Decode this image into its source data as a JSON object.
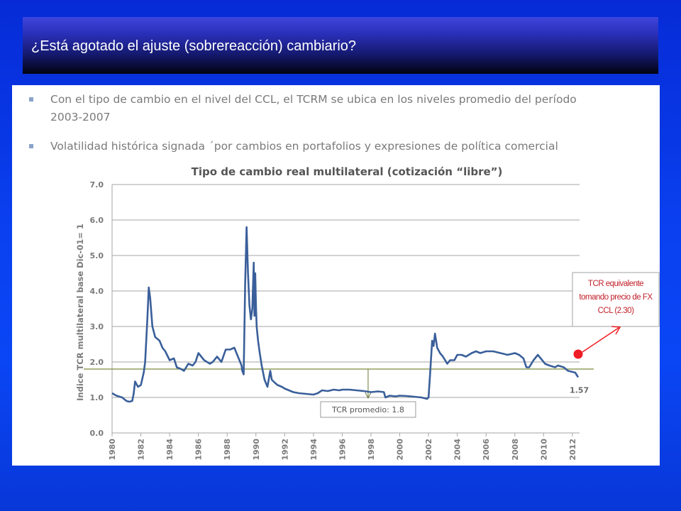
{
  "slide": {
    "title": "¿Está agotado el ajuste (sobrereacción) cambiario?",
    "bullets": [
      "Con el tipo de cambio en el nivel del CCL, el TCRM se ubica en los niveles promedio del período",
      "2003-2007",
      "Volatilidad histórica signada ´por cambios en portafolios y expresiones de política comercial"
    ],
    "colors": {
      "background": "#0a40f0",
      "title_bar": "#2a2fb8",
      "line": "#3a5f9a",
      "average_line": "#7a8a3a",
      "marker": "#ee1c25"
    }
  },
  "chart_data": {
    "type": "line",
    "title": "Tipo de cambio real multilateral (cotización “libre”)",
    "ylabel": "Indice TCR multilateral base Dic-01= 1",
    "xlabel": "",
    "ylim": [
      0,
      7
    ],
    "yticks": [
      "0.0",
      "1.0",
      "2.0",
      "3.0",
      "4.0",
      "5.0",
      "6.0",
      "7.0"
    ],
    "xlim": [
      1980,
      2012.5
    ],
    "xticks": [
      "1980",
      "1982",
      "1984",
      "1986",
      "1988",
      "1990",
      "1992",
      "1994",
      "1996",
      "1998",
      "2000",
      "2002",
      "2004",
      "2006",
      "2008",
      "2010",
      "2012"
    ],
    "grid": "horizontal",
    "series": [
      {
        "x": [
          1980.0,
          1980.3,
          1980.7,
          1981.0,
          1981.2,
          1981.4,
          1981.5,
          1981.6,
          1981.8,
          1982.0,
          1982.2,
          1982.3,
          1982.45,
          1982.55,
          1982.65,
          1982.8,
          1983.0,
          1983.3,
          1983.5,
          1983.7,
          1984.0,
          1984.3,
          1984.5,
          1984.8,
          1985.0,
          1985.3,
          1985.6,
          1985.8,
          1986.0,
          1986.4,
          1986.8,
          1987.0,
          1987.3,
          1987.6,
          1987.9,
          1988.2,
          1988.5,
          1988.7,
          1988.9,
          1989.0,
          1989.05,
          1989.15,
          1989.25,
          1989.35,
          1989.45,
          1989.55,
          1989.65,
          1989.75,
          1989.85,
          1989.9,
          1989.95,
          1990.0,
          1990.05,
          1990.15,
          1990.25,
          1990.4,
          1990.6,
          1990.8,
          1991.0,
          1991.1,
          1991.3,
          1991.5,
          1991.8,
          1992.0,
          1992.3,
          1992.6,
          1993.0,
          1993.5,
          1994.0,
          1994.3,
          1994.6,
          1995.0,
          1995.4,
          1995.8,
          1996.0,
          1996.5,
          1997.0,
          1997.5,
          1998.0,
          1998.5,
          1998.9,
          1999.0,
          1999.3,
          1999.7,
          2000.0,
          2000.5,
          2001.0,
          2001.5,
          2001.9,
          2002.0,
          2002.1,
          2002.25,
          2002.35,
          2002.45,
          2002.6,
          2002.8,
          2003.0,
          2003.3,
          2003.5,
          2003.8,
          2004.0,
          2004.3,
          2004.6,
          2005.0,
          2005.3,
          2005.6,
          2006.0,
          2006.5,
          2007.0,
          2007.5,
          2008.0,
          2008.3,
          2008.6,
          2008.8,
          2009.0,
          2009.3,
          2009.6,
          2009.9,
          2010.1,
          2010.4,
          2010.8,
          2011.0,
          2011.4,
          2011.7,
          2012.0,
          2012.2,
          2012.4
        ],
        "y": [
          1.12,
          1.05,
          1.0,
          0.9,
          0.88,
          0.9,
          1.1,
          1.45,
          1.3,
          1.35,
          1.7,
          2.0,
          3.2,
          4.1,
          3.8,
          3.0,
          2.7,
          2.6,
          2.4,
          2.3,
          2.05,
          2.1,
          1.85,
          1.8,
          1.75,
          1.95,
          1.9,
          2.0,
          2.25,
          2.05,
          1.95,
          2.0,
          2.15,
          2.0,
          2.35,
          2.35,
          2.4,
          2.2,
          2.0,
          1.9,
          1.75,
          1.65,
          4.2,
          5.8,
          4.5,
          3.6,
          3.2,
          3.5,
          4.8,
          3.3,
          4.5,
          3.6,
          3.0,
          2.6,
          2.3,
          1.9,
          1.5,
          1.3,
          1.75,
          1.5,
          1.42,
          1.35,
          1.3,
          1.25,
          1.2,
          1.15,
          1.12,
          1.1,
          1.08,
          1.12,
          1.2,
          1.18,
          1.22,
          1.2,
          1.22,
          1.22,
          1.2,
          1.18,
          1.15,
          1.17,
          1.15,
          1.0,
          1.05,
          1.03,
          1.05,
          1.04,
          1.02,
          1.0,
          0.96,
          1.0,
          1.6,
          2.6,
          2.45,
          2.8,
          2.4,
          2.25,
          2.15,
          1.95,
          2.05,
          2.05,
          2.2,
          2.2,
          2.15,
          2.25,
          2.3,
          2.25,
          2.3,
          2.3,
          2.25,
          2.2,
          2.25,
          2.2,
          2.1,
          1.85,
          1.85,
          2.05,
          2.2,
          2.05,
          1.95,
          1.9,
          1.85,
          1.9,
          1.85,
          1.75,
          1.72,
          1.7,
          1.57
        ]
      }
    ],
    "average": {
      "value": 1.8,
      "label": "TCR promedio: 1.8"
    },
    "last_value": {
      "x": 2012.4,
      "y": 1.57,
      "label": "1.57"
    },
    "annotation": {
      "lines": [
        "TCR equivalente",
        "tomando precio de FX",
        "CCL (2.30)"
      ],
      "value": 2.3
    }
  }
}
